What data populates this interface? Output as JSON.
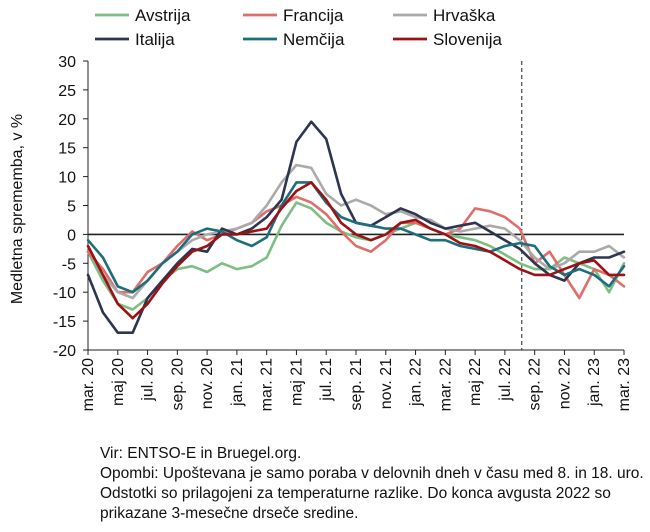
{
  "chart_data": {
    "type": "line",
    "xlabel": "",
    "ylabel": "Medletna sprememba, v %",
    "ylim": [
      -20,
      30
    ],
    "yticks": [
      -20,
      -15,
      -10,
      -5,
      0,
      5,
      10,
      15,
      20,
      25,
      30
    ],
    "grid": false,
    "legend": "top",
    "x": [
      "mar. 20",
      "apr. 20",
      "maj 20",
      "jun. 20",
      "jul. 20",
      "avg. 20",
      "sep. 20",
      "okt. 20",
      "nov. 20",
      "dec. 20",
      "jan. 21",
      "feb. 21",
      "mar. 21",
      "apr. 21",
      "maj 21",
      "jun. 21",
      "jul. 21",
      "avg. 21",
      "sep. 21",
      "okt. 21",
      "nov. 21",
      "dec. 21",
      "jan. 22",
      "feb. 22",
      "mar. 22",
      "apr. 22",
      "maj 22",
      "jun. 22",
      "jul. 22",
      "avg. 22",
      "sep. 22",
      "okt. 22",
      "nov. 22",
      "dec. 22",
      "jan. 23",
      "feb. 23",
      "mar. 23"
    ],
    "xtick_labels": [
      "mar. 20",
      "maj 20",
      "jul. 20",
      "sep. 20",
      "nov. 20",
      "jan. 21",
      "mar. 21",
      "maj 21",
      "jul. 21",
      "sep. 21",
      "nov. 21",
      "jan. 22",
      "mar. 22",
      "maj 22",
      "jul. 22",
      "sep. 22",
      "nov. 22",
      "jan. 23",
      "mar. 23"
    ],
    "annotation_vline_at": "avg. 22",
    "series": [
      {
        "name": "Avstrija",
        "color": "#7DBE83",
        "values": [
          -3,
          -8,
          -12,
          -13,
          -11,
          -8,
          -6,
          -5.5,
          -6.5,
          -5,
          -6,
          -5.5,
          -4,
          1.5,
          5.5,
          4.5,
          2,
          0.5,
          -0.5,
          -1,
          0,
          1,
          2,
          1,
          0,
          -0.5,
          -1,
          -2,
          -3.5,
          -5,
          -6,
          -6,
          -4,
          -5,
          -6,
          -10,
          -5
        ]
      },
      {
        "name": "Francija",
        "color": "#E06D6A",
        "values": [
          -3,
          -6,
          -10,
          -10,
          -6.5,
          -5,
          -2,
          0.5,
          -1,
          0,
          1,
          2,
          4,
          5,
          6.5,
          5.5,
          3.5,
          0.5,
          -2,
          -3,
          -1,
          2,
          2,
          1,
          0,
          1,
          4.5,
          4,
          3,
          1,
          -5,
          -3,
          -7,
          -11,
          -6,
          -7,
          -9
        ]
      },
      {
        "name": "Hrvaška",
        "color": "#AAAAAA",
        "values": [
          -2,
          -7,
          -10,
          -11,
          -8,
          -5,
          -3,
          -1,
          0,
          0.5,
          1,
          2,
          5,
          9,
          12,
          11.5,
          7,
          5,
          6,
          5,
          3.5,
          4,
          3,
          2.5,
          1,
          0.5,
          1,
          1.5,
          1,
          -1,
          -4,
          -6,
          -5,
          -3,
          -3,
          -2,
          -4
        ]
      },
      {
        "name": "Italija",
        "color": "#2D3550",
        "values": [
          -7,
          -13.5,
          -17,
          -17,
          -11,
          -8,
          -5,
          -2.5,
          -3,
          1,
          0,
          1,
          3,
          6,
          16,
          19.5,
          16.5,
          7,
          2,
          1.5,
          3,
          4.5,
          3.5,
          2,
          1,
          1.5,
          2,
          0.5,
          -1,
          -2.5,
          -5,
          -7,
          -8,
          -5,
          -4,
          -4,
          -3
        ]
      },
      {
        "name": "Nemčija",
        "color": "#1D6E7C",
        "values": [
          -1,
          -4,
          -9,
          -10,
          -8,
          -5,
          -3,
          0,
          1,
          0.5,
          -1,
          -2,
          -0.5,
          5,
          9,
          9,
          5.5,
          3,
          2,
          1.5,
          1,
          1,
          0,
          -1,
          -1,
          -2,
          -2.5,
          -3,
          -2,
          -1.5,
          -2,
          -5.5,
          -7,
          -6,
          -7,
          -9,
          -5.5
        ]
      },
      {
        "name": "Slovenija",
        "color": "#9B1114",
        "values": [
          -2,
          -7,
          -12,
          -14.5,
          -12,
          -8.5,
          -5.5,
          -3,
          -2,
          0,
          0,
          0.5,
          1,
          4.5,
          7.5,
          9,
          6,
          2,
          0,
          -1,
          0,
          2,
          2.5,
          1,
          0,
          -1.5,
          -2,
          -3,
          -4.5,
          -6,
          -7,
          -7,
          -6,
          -5,
          -4.5,
          -7,
          -7
        ]
      }
    ]
  },
  "notes": {
    "source": "Vir: ENTSO-E in Bruegel.org.",
    "remarks": "Opombi: Upoštevana je samo poraba v delovnih dneh v času med 8. in 18. uro. Odstotki so prilagojeni za temperaturne razlike. Do konca avgusta 2022 so prikazane 3-mesečne drseče sredine."
  }
}
